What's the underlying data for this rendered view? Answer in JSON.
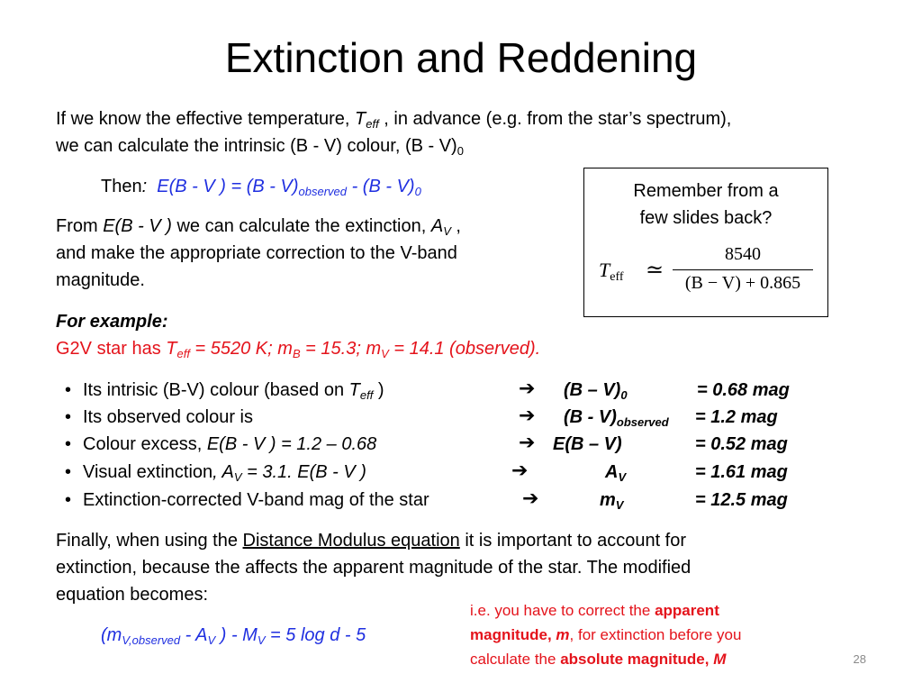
{
  "title": "Extinction and Reddening",
  "intro": {
    "l1a": "If we know the effective temperature, ",
    "teff_T": "T",
    "teff_sub": "eff",
    "l1b": " , in advance (e.g. from the star’s spectrum),",
    "l2a": "we can calculate the intrinsic (B - V) colour, (B - V)",
    "l2_sub": "0"
  },
  "then": {
    "label": "Then",
    "colon": ":",
    "eq_a": "E(B - V ) = (B - V)",
    "eq_sub1": "observed",
    "eq_b": " - (B - V)",
    "eq_sub2": "0"
  },
  "from": {
    "l1a": "From ",
    "l1_eb": "E(B - V )",
    "l1b": " we can calculate the extinction, ",
    "l1_A": "A",
    "l1_sub": "V",
    "l1c": " ,",
    "l2": "and make the appropriate correction to the V-band",
    "l3": "magnitude."
  },
  "box": {
    "line1": "Remember from a",
    "line2": "few slides back?",
    "formula_T": "T",
    "formula_sub": "eff",
    "formula_rel": "≃",
    "formula_num": "8540",
    "formula_den": "(B − V) + 0.865"
  },
  "example": {
    "label": "For example:",
    "l_a": "G2V star has ",
    "l_T": "T",
    "l_Tsub": "eff",
    "l_b": " = 5520 K;  m",
    "l_mB_sub": "B",
    "l_c": " = 15.3;  m",
    "l_mV_sub": "V",
    "l_d": " = 14.1 (observed)."
  },
  "bullets": [
    {
      "pre": "Its intrisic (B-V) colour (based on ",
      "t": "T",
      "tsub": "eff",
      "post": " )",
      "res_a": "(B – V)",
      "res_sub": "0",
      "val": "=  0.68 mag"
    },
    {
      "pre": "Its observed colour is",
      "res_a": "(B - V)",
      "res_sub": "observed",
      "val": "= 1.2 mag"
    },
    {
      "pre": "Colour excess, ",
      "it": "E(B - V ) = 1.2 – 0.68",
      "res_a": "E(B – V)",
      "val": "= 0.52 mag"
    },
    {
      "pre": "Visual extinction",
      "it1": ", A",
      "it_sub": "V",
      "it2": " = 3.1. E(B - V )",
      "res_a": "A",
      "res_sub": "V",
      "val": "= 1.61 mag"
    },
    {
      "pre": "Extinction-corrected V-band mag of the star",
      "res_a": "m",
      "res_sub": "V",
      "val": "= 12.5 mag"
    }
  ],
  "arrow_glyph": "➔",
  "bullet_glyph": "•",
  "finally": {
    "l1a": "Finally, when using the ",
    "l1_link": "Distance Modulus equation",
    "l1b": " it is important to account for",
    "l2": "extinction, because the affects the apparent magnitude of the star. The modified",
    "l3": "equation becomes:"
  },
  "final_eq": {
    "a": "(m",
    "sub1": "V,observed",
    "b": " - A",
    "sub2": "V",
    "c": " ) - M",
    "sub3": "V",
    "d": " = 5 log d - 5"
  },
  "note": {
    "l1a": "i.e. you have to correct the ",
    "l1b": "apparent",
    "l2a": "magnitude, ",
    "l2b": "m",
    "l2c": ", for extinction before you",
    "l3a": "calculate the ",
    "l3b": "absolute magnitude, ",
    "l3c": "M"
  },
  "page_number": "28"
}
